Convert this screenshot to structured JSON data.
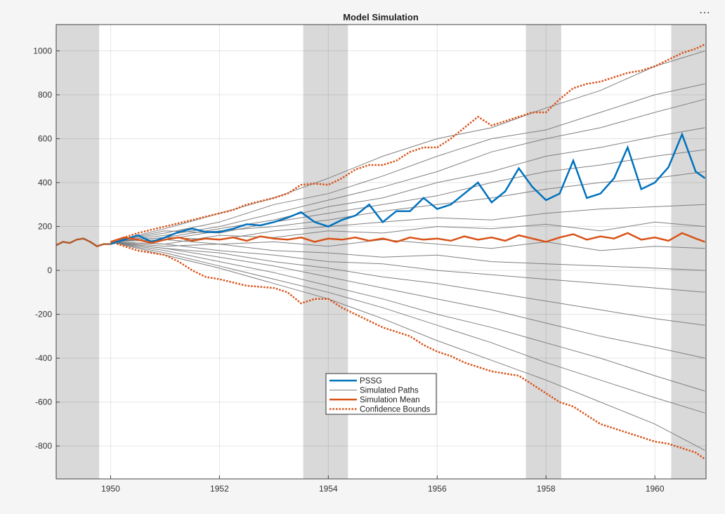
{
  "toolbar": {
    "more_icon": "ellipsis-icon",
    "more_label": "⋯"
  },
  "chart_data": {
    "type": "line",
    "title": "Model Simulation",
    "xlabel": "",
    "ylabel": "",
    "xlim": [
      1949,
      1960.94
    ],
    "ylim": [
      -950,
      1120
    ],
    "xticks": [
      1950,
      1952,
      1954,
      1956,
      1958,
      1960
    ],
    "yticks": [
      -800,
      -600,
      -400,
      -200,
      0,
      200,
      400,
      600,
      800,
      1000
    ],
    "grid": true,
    "legend_placement": "bottom-center",
    "colors": {
      "pssg": "#0072BD",
      "paths": "#808080",
      "mean": "#D95319",
      "bounds": "#D95319",
      "recession": "#d9d9d9"
    },
    "recessions": [
      [
        1949,
        1949.79
      ],
      [
        1953.54,
        1954.36
      ],
      [
        1957.63,
        1958.28
      ],
      [
        1960.3,
        1960.94
      ]
    ],
    "history": {
      "x": [
        1949,
        1949.125,
        1949.25,
        1949.375,
        1949.5,
        1949.625,
        1949.75,
        1949.875,
        1950
      ],
      "values": [
        115,
        130,
        125,
        140,
        145,
        130,
        110,
        120,
        120
      ]
    },
    "x": [
      1950,
      1950.25,
      1950.5,
      1950.75,
      1951,
      1951.25,
      1951.5,
      1951.75,
      1952,
      1952.25,
      1952.5,
      1952.75,
      1953,
      1953.25,
      1953.5,
      1953.75,
      1954,
      1954.25,
      1954.5,
      1954.75,
      1955,
      1955.25,
      1955.5,
      1955.75,
      1956,
      1956.25,
      1956.5,
      1956.75,
      1957,
      1957.25,
      1957.5,
      1957.75,
      1958,
      1958.25,
      1958.5,
      1958.75,
      1959,
      1959.25,
      1959.5,
      1959.75,
      1960,
      1960.25,
      1960.5,
      1960.75,
      1960.92
    ],
    "series": [
      {
        "name": "PSSG",
        "values": [
          120,
          140,
          160,
          130,
          150,
          175,
          190,
          175,
          175,
          190,
          210,
          205,
          220,
          240,
          265,
          220,
          200,
          230,
          250,
          300,
          220,
          270,
          270,
          330,
          280,
          300,
          350,
          400,
          310,
          360,
          465,
          380,
          320,
          350,
          500,
          330,
          350,
          420,
          560,
          370,
          400,
          470,
          620,
          450,
          420
        ]
      },
      {
        "name": "Simulation Mean",
        "values": [
          130,
          150,
          140,
          125,
          140,
          150,
          135,
          145,
          140,
          150,
          135,
          155,
          145,
          140,
          150,
          130,
          145,
          140,
          150,
          135,
          145,
          130,
          150,
          140,
          145,
          135,
          155,
          140,
          150,
          135,
          160,
          145,
          130,
          150,
          165,
          140,
          155,
          145,
          170,
          140,
          150,
          135,
          170,
          145,
          130
        ]
      },
      {
        "name": "Confidence Bounds",
        "upper": [
          130,
          150,
          170,
          185,
          200,
          215,
          230,
          245,
          260,
          275,
          300,
          315,
          330,
          350,
          390,
          395,
          390,
          420,
          460,
          480,
          480,
          500,
          540,
          560,
          560,
          600,
          650,
          700,
          660,
          680,
          700,
          720,
          720,
          780,
          830,
          850,
          860,
          880,
          900,
          910,
          930,
          960,
          990,
          1010,
          1030
        ],
        "lower": [
          130,
          110,
          90,
          80,
          70,
          40,
          0,
          -30,
          -40,
          -55,
          -70,
          -75,
          -80,
          -100,
          -150,
          -130,
          -130,
          -170,
          -200,
          -230,
          -260,
          -280,
          -300,
          -340,
          -370,
          -390,
          -420,
          -440,
          -460,
          -470,
          -480,
          -520,
          -560,
          -600,
          -620,
          -660,
          -700,
          -720,
          -740,
          -760,
          -780,
          -790,
          -810,
          -830,
          -860
        ]
      }
    ],
    "simulated_paths": {
      "name": "Simulated Paths",
      "x": [
        1950,
        1951,
        1952,
        1953,
        1954,
        1955,
        1956,
        1957,
        1958,
        1959,
        1960,
        1960.92
      ],
      "paths": [
        [
          130,
          190,
          260,
          330,
          420,
          520,
          600,
          650,
          740,
          820,
          930,
          1000
        ],
        [
          130,
          170,
          220,
          300,
          350,
          430,
          520,
          600,
          640,
          720,
          800,
          850
        ],
        [
          130,
          160,
          200,
          260,
          320,
          380,
          450,
          540,
          600,
          650,
          720,
          780
        ],
        [
          130,
          150,
          190,
          230,
          290,
          330,
          400,
          450,
          520,
          560,
          610,
          650
        ],
        [
          130,
          180,
          170,
          220,
          260,
          300,
          340,
          400,
          450,
          480,
          520,
          550
        ],
        [
          130,
          140,
          180,
          200,
          230,
          270,
          300,
          330,
          370,
          400,
          420,
          450
        ],
        [
          130,
          150,
          140,
          180,
          200,
          220,
          240,
          230,
          260,
          280,
          290,
          300
        ],
        [
          130,
          120,
          160,
          150,
          180,
          170,
          200,
          190,
          210,
          180,
          220,
          200
        ],
        [
          130,
          140,
          120,
          130,
          110,
          140,
          120,
          100,
          130,
          90,
          110,
          100
        ],
        [
          130,
          110,
          120,
          90,
          80,
          60,
          70,
          40,
          30,
          20,
          10,
          0
        ],
        [
          130,
          120,
          90,
          70,
          40,
          30,
          0,
          -20,
          -40,
          -60,
          -80,
          -100
        ],
        [
          130,
          100,
          80,
          40,
          10,
          -30,
          -60,
          -100,
          -140,
          -180,
          -220,
          -250
        ],
        [
          130,
          100,
          60,
          20,
          -30,
          -80,
          -130,
          -180,
          -240,
          -300,
          -350,
          -400
        ],
        [
          130,
          90,
          40,
          -10,
          -70,
          -130,
          -200,
          -260,
          -330,
          -400,
          -480,
          -550
        ],
        [
          130,
          80,
          20,
          -40,
          -100,
          -170,
          -250,
          -330,
          -420,
          -500,
          -580,
          -650
        ],
        [
          130,
          70,
          10,
          -60,
          -130,
          -220,
          -320,
          -410,
          -500,
          -600,
          -700,
          -820
        ]
      ]
    },
    "legend": [
      "PSSG",
      "Simulated Paths",
      "Simulation Mean",
      "Confidence Bounds"
    ]
  }
}
